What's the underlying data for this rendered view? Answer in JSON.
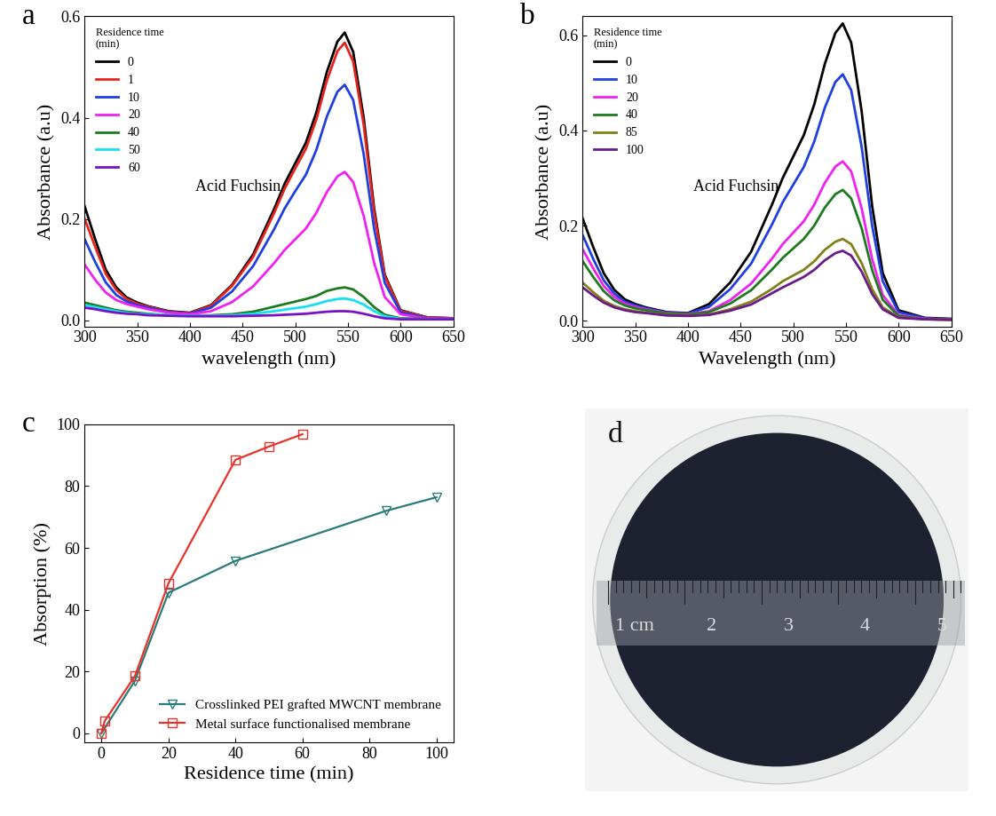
{
  "chart_data": [
    {
      "type": "line",
      "title": "a",
      "x_label": "wavelength (nm)",
      "y_label": "Absorbance (a.u)",
      "annotations": [
        "Acid Fuchsin"
      ],
      "legend_title": "Residence time\n(min)",
      "legend": "upper left",
      "xlim": [
        300,
        650
      ],
      "xticks": [
        300,
        350,
        400,
        450,
        500,
        550,
        600,
        650
      ],
      "ylim": [
        -0.012,
        0.6
      ],
      "yticks": [
        0.0,
        0.2,
        0.4,
        0.6
      ],
      "x": [
        300,
        310,
        320,
        330,
        340,
        350,
        360,
        380,
        400,
        420,
        440,
        460,
        480,
        490,
        500,
        510,
        520,
        530,
        540,
        547,
        555,
        565,
        575,
        585,
        600,
        625,
        650
      ],
      "series": [
        {
          "name": "0",
          "color": "#000000",
          "values": [
            0.225,
            0.16,
            0.1,
            0.065,
            0.045,
            0.035,
            0.028,
            0.018,
            0.015,
            0.03,
            0.07,
            0.13,
            0.22,
            0.27,
            0.31,
            0.35,
            0.41,
            0.49,
            0.55,
            0.568,
            0.53,
            0.4,
            0.22,
            0.09,
            0.02,
            0.006,
            0.004
          ]
        },
        {
          "name": "1",
          "color": "#e8231c",
          "values": [
            0.2,
            0.145,
            0.092,
            0.06,
            0.042,
            0.033,
            0.027,
            0.017,
            0.014,
            0.029,
            0.068,
            0.125,
            0.212,
            0.26,
            0.3,
            0.338,
            0.396,
            0.473,
            0.531,
            0.548,
            0.511,
            0.386,
            0.212,
            0.087,
            0.019,
            0.006,
            0.004
          ]
        },
        {
          "name": "10",
          "color": "#1f3fe0",
          "values": [
            0.16,
            0.115,
            0.075,
            0.05,
            0.037,
            0.03,
            0.025,
            0.016,
            0.013,
            0.025,
            0.057,
            0.107,
            0.18,
            0.221,
            0.255,
            0.287,
            0.336,
            0.402,
            0.451,
            0.465,
            0.435,
            0.328,
            0.18,
            0.074,
            0.016,
            0.005,
            0.003
          ]
        },
        {
          "name": "20",
          "color": "#f020f0",
          "values": [
            0.11,
            0.08,
            0.055,
            0.04,
            0.032,
            0.027,
            0.022,
            0.015,
            0.012,
            0.018,
            0.036,
            0.067,
            0.113,
            0.139,
            0.16,
            0.181,
            0.212,
            0.253,
            0.284,
            0.293,
            0.273,
            0.206,
            0.113,
            0.046,
            0.012,
            0.004,
            0.003
          ]
        },
        {
          "name": "40",
          "color": "#1e7a1e",
          "values": [
            0.035,
            0.03,
            0.025,
            0.02,
            0.017,
            0.015,
            0.013,
            0.01,
            0.009,
            0.01,
            0.012,
            0.017,
            0.027,
            0.032,
            0.037,
            0.042,
            0.048,
            0.058,
            0.063,
            0.065,
            0.061,
            0.046,
            0.026,
            0.011,
            0.004,
            0.003,
            0.002
          ]
        },
        {
          "name": "50",
          "color": "#16e0f0",
          "values": [
            0.03,
            0.026,
            0.022,
            0.018,
            0.015,
            0.013,
            0.012,
            0.01,
            0.009,
            0.009,
            0.01,
            0.013,
            0.018,
            0.021,
            0.024,
            0.027,
            0.032,
            0.038,
            0.042,
            0.043,
            0.04,
            0.031,
            0.018,
            0.008,
            0.003,
            0.002,
            0.002
          ]
        },
        {
          "name": "60",
          "color": "#7a10c8",
          "values": [
            0.025,
            0.022,
            0.018,
            0.015,
            0.013,
            0.012,
            0.01,
            0.009,
            0.008,
            0.008,
            0.008,
            0.009,
            0.01,
            0.011,
            0.012,
            0.013,
            0.015,
            0.017,
            0.018,
            0.018,
            0.017,
            0.013,
            0.008,
            0.004,
            0.002,
            0.002,
            0.002
          ]
        }
      ]
    },
    {
      "type": "line",
      "title": "b",
      "x_label": "Wavelength (nm)",
      "y_label": "Absorbance (a.u)",
      "annotations": [
        "Acid Fuchsin"
      ],
      "legend_title": "Residence time\n(min)",
      "legend": "upper left",
      "xlim": [
        300,
        650
      ],
      "xticks": [
        300,
        350,
        400,
        450,
        500,
        550,
        600,
        650
      ],
      "ylim": [
        -0.012,
        0.64
      ],
      "yticks": [
        0.0,
        0.2,
        0.4,
        0.6
      ],
      "x": [
        300,
        310,
        320,
        330,
        340,
        350,
        360,
        380,
        400,
        420,
        440,
        460,
        480,
        490,
        500,
        510,
        520,
        530,
        540,
        547,
        555,
        565,
        575,
        585,
        600,
        625,
        650
      ],
      "series": [
        {
          "name": "0",
          "color": "#000000",
          "values": [
            0.215,
            0.155,
            0.1,
            0.065,
            0.045,
            0.035,
            0.028,
            0.018,
            0.016,
            0.035,
            0.08,
            0.145,
            0.245,
            0.3,
            0.345,
            0.39,
            0.455,
            0.54,
            0.605,
            0.625,
            0.585,
            0.44,
            0.24,
            0.1,
            0.022,
            0.006,
            0.004
          ]
        },
        {
          "name": "10",
          "color": "#1f3fe0",
          "values": [
            0.18,
            0.13,
            0.085,
            0.057,
            0.04,
            0.032,
            0.026,
            0.017,
            0.015,
            0.029,
            0.066,
            0.12,
            0.203,
            0.249,
            0.286,
            0.323,
            0.377,
            0.448,
            0.502,
            0.518,
            0.485,
            0.365,
            0.199,
            0.083,
            0.018,
            0.005,
            0.003
          ]
        },
        {
          "name": "20",
          "color": "#f020f0",
          "values": [
            0.15,
            0.11,
            0.073,
            0.05,
            0.036,
            0.029,
            0.024,
            0.016,
            0.014,
            0.02,
            0.043,
            0.078,
            0.131,
            0.161,
            0.185,
            0.209,
            0.244,
            0.29,
            0.324,
            0.335,
            0.314,
            0.236,
            0.129,
            0.054,
            0.012,
            0.004,
            0.003
          ]
        },
        {
          "name": "40",
          "color": "#1e7a1e",
          "values": [
            0.125,
            0.092,
            0.062,
            0.043,
            0.032,
            0.026,
            0.022,
            0.015,
            0.013,
            0.018,
            0.036,
            0.064,
            0.108,
            0.132,
            0.152,
            0.172,
            0.2,
            0.238,
            0.266,
            0.275,
            0.257,
            0.194,
            0.106,
            0.044,
            0.01,
            0.003,
            0.002
          ]
        },
        {
          "name": "85",
          "color": "#80801a",
          "values": [
            0.08,
            0.06,
            0.042,
            0.031,
            0.024,
            0.02,
            0.017,
            0.012,
            0.011,
            0.013,
            0.024,
            0.04,
            0.067,
            0.083,
            0.095,
            0.107,
            0.125,
            0.149,
            0.166,
            0.172,
            0.161,
            0.121,
            0.066,
            0.028,
            0.007,
            0.003,
            0.002
          ]
        },
        {
          "name": "100",
          "color": "#6a1a8a",
          "values": [
            0.07,
            0.053,
            0.038,
            0.028,
            0.022,
            0.018,
            0.016,
            0.011,
            0.01,
            0.012,
            0.021,
            0.034,
            0.058,
            0.07,
            0.081,
            0.092,
            0.107,
            0.127,
            0.142,
            0.147,
            0.137,
            0.103,
            0.056,
            0.024,
            0.006,
            0.003,
            0.002
          ]
        }
      ]
    },
    {
      "type": "line",
      "title": "c",
      "x_label": "Residence time (min)",
      "y_label": "Absorption (%)",
      "legend": "lower right",
      "xlim": [
        -5,
        105
      ],
      "xticks": [
        0,
        20,
        40,
        60,
        80,
        100
      ],
      "ylim": [
        -3,
        100
      ],
      "yticks": [
        0,
        20,
        40,
        60,
        80,
        100
      ],
      "series": [
        {
          "name": "Crosslinked PEI grafted MWCNT membrane",
          "color": "#2a7a7a",
          "marker": "triangle_down",
          "x": [
            0,
            10,
            20,
            40,
            85,
            100
          ],
          "values": [
            0,
            17,
            45.5,
            55.8,
            72,
            76.4
          ]
        },
        {
          "name": "Metal surface functionalised membrane",
          "color": "#e8322a",
          "marker": "square",
          "x": [
            0,
            1,
            10,
            20,
            40,
            50,
            60
          ],
          "values": [
            0,
            4,
            18.5,
            48.5,
            88.5,
            92.8,
            96.8
          ]
        }
      ]
    }
  ],
  "photo": {
    "label": "d",
    "ruler_labels": [
      "1 cm",
      "2",
      "3",
      "4",
      "5"
    ]
  }
}
